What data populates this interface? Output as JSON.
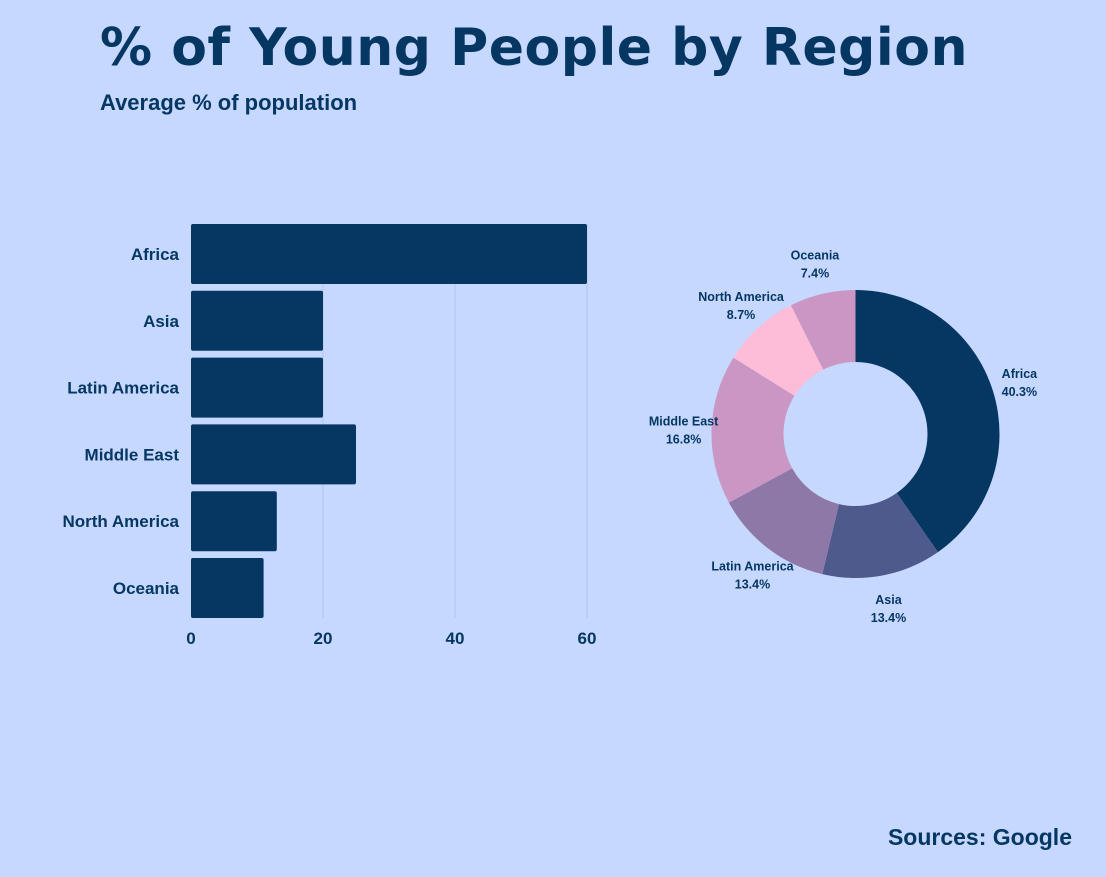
{
  "header": {
    "title": "% of Young People by Region",
    "subtitle": "Average % of population"
  },
  "footer": {
    "source": "Sources: Google"
  },
  "colors": {
    "background": "#c6d8fe",
    "primary": "#063763",
    "gridline": "#b3c3ea"
  },
  "chart_data": [
    {
      "type": "bar",
      "orientation": "horizontal",
      "title": "",
      "xlabel": "",
      "ylabel": "",
      "categories": [
        "Africa",
        "Asia",
        "Latin America",
        "Middle East",
        "North America",
        "Oceania"
      ],
      "values": [
        60,
        20,
        20,
        25,
        13,
        11
      ],
      "xlim": [
        0,
        60
      ],
      "xticks": [
        0,
        20,
        40,
        60
      ],
      "grid": true,
      "bar_color": "#063763"
    },
    {
      "type": "pie",
      "style": "donut",
      "slices": [
        {
          "label": "Africa",
          "value": 40.3,
          "display": "40.3%",
          "color": "#063763"
        },
        {
          "label": "Asia",
          "value": 13.4,
          "display": "13.4%",
          "color": "#4f5a8c"
        },
        {
          "label": "Latin America",
          "value": 13.4,
          "display": "13.4%",
          "color": "#8e78a7"
        },
        {
          "label": "Middle East",
          "value": 16.8,
          "display": "16.8%",
          "color": "#ca97c4"
        },
        {
          "label": "North America",
          "value": 8.7,
          "display": "8.7%",
          "color": "#fdbcd8"
        },
        {
          "label": "Oceania",
          "value": 7.4,
          "display": "7.4%",
          "color": "#ca97c4"
        }
      ]
    }
  ]
}
